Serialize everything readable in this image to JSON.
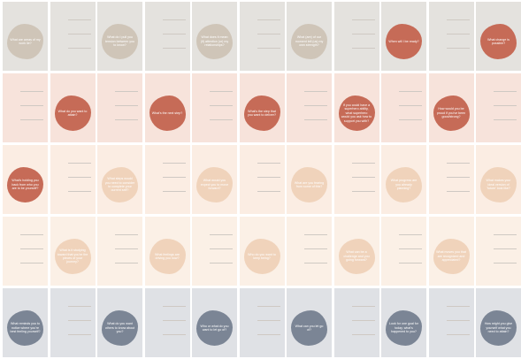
{
  "palette": {
    "row_backgrounds": [
      "#e4e2de",
      "#f7e3db",
      "#fbede3",
      "#fbf0e6",
      "#dfe1e5"
    ],
    "blob_colors": {
      "tan": "#cfc5b8",
      "rust": "#c66b57",
      "peach": "#f0d3bb",
      "slate": "#7b8595"
    }
  },
  "cards": [
    [
      {
        "blob": true,
        "color": "tan",
        "text": "What are areas of my work lie?"
      },
      {
        "blob": false,
        "text": ""
      },
      {
        "blob": true,
        "color": "tan",
        "text": "What do I pull you tension between you to know?"
      },
      {
        "blob": false,
        "text": ""
      },
      {
        "blob": true,
        "color": "tan",
        "text": "What does it mean (if) attention (or) my relationships?"
      },
      {
        "blob": false,
        "text": ""
      },
      {
        "blob": true,
        "color": "tan",
        "text": "What (are) of our moment tell (us) my own strength?"
      },
      {
        "blob": false,
        "text": ""
      },
      {
        "blob": true,
        "color": "rust",
        "text": "When will I be ready?"
      },
      {
        "blob": false,
        "text": ""
      },
      {
        "blob": true,
        "color": "rust",
        "text": "What change is possible?"
      }
    ],
    [
      {
        "blob": false,
        "text": ""
      },
      {
        "blob": true,
        "color": "rust",
        "text": "What do you want to attain?"
      },
      {
        "blob": false,
        "text": ""
      },
      {
        "blob": true,
        "color": "rust",
        "text": "What's the next step?"
      },
      {
        "blob": false,
        "text": ""
      },
      {
        "blob": true,
        "color": "rust",
        "text": "What's the step that you want to deliver?"
      },
      {
        "blob": false,
        "text": ""
      },
      {
        "blob": true,
        "color": "rust",
        "text": "If you could have a superhero ability, what superhero would you ask how to support you with?"
      },
      {
        "blob": false,
        "text": ""
      },
      {
        "blob": true,
        "color": "rust",
        "text": "How would you be proud if you've been good/strong?"
      },
      {
        "blob": false,
        "text": ""
      }
    ],
    [
      {
        "blob": true,
        "color": "rust",
        "text": "What's holding you back from who you are to be yourself?"
      },
      {
        "blob": false,
        "text": ""
      },
      {
        "blob": true,
        "color": "peach",
        "text": "What steps would you need to consider to complete your current self?"
      },
      {
        "blob": false,
        "text": ""
      },
      {
        "blob": true,
        "color": "peach",
        "text": "What would you expect you to move forward?"
      },
      {
        "blob": false,
        "text": ""
      },
      {
        "blob": true,
        "color": "peach",
        "text": "What are you fearing from some of this?"
      },
      {
        "blob": false,
        "text": ""
      },
      {
        "blob": true,
        "color": "peach",
        "text": "What progress are you already planning?"
      },
      {
        "blob": false,
        "text": ""
      },
      {
        "blob": true,
        "color": "peach",
        "text": "What makes your ideal version of 'future' look like?"
      }
    ],
    [
      {
        "blob": false,
        "text": ""
      },
      {
        "blob": true,
        "color": "peach",
        "text": "What is it studying toward that you're the pieces of your journey?"
      },
      {
        "blob": false,
        "text": ""
      },
      {
        "blob": true,
        "color": "peach",
        "text": "What feelings are driving you now?"
      },
      {
        "blob": false,
        "text": ""
      },
      {
        "blob": true,
        "color": "peach",
        "text": "Who do you want to keep being?"
      },
      {
        "blob": false,
        "text": ""
      },
      {
        "blob": true,
        "color": "peach",
        "text": "What can be a challenge and you going forward?"
      },
      {
        "blob": false,
        "text": ""
      },
      {
        "blob": true,
        "color": "peach",
        "text": "What moves you that are recognized and appreciated?"
      },
      {
        "blob": false,
        "text": ""
      }
    ],
    [
      {
        "blob": true,
        "color": "slate",
        "text": "What reminds you to notice where you're best feeling yourself?"
      },
      {
        "blob": false,
        "text": ""
      },
      {
        "blob": true,
        "color": "slate",
        "text": "What do you want others to know about you?"
      },
      {
        "blob": false,
        "text": ""
      },
      {
        "blob": true,
        "color": "slate",
        "text": "Who or what do you want to let go of?"
      },
      {
        "blob": false,
        "text": ""
      },
      {
        "blob": true,
        "color": "slate",
        "text": "What can you let go of?"
      },
      {
        "blob": false,
        "text": ""
      },
      {
        "blob": true,
        "color": "slate",
        "text": "Look for one goal for today, what's happened to you?"
      },
      {
        "blob": false,
        "text": ""
      },
      {
        "blob": true,
        "color": "slate",
        "text": "How might you give yourself what you need to attain?"
      }
    ]
  ]
}
